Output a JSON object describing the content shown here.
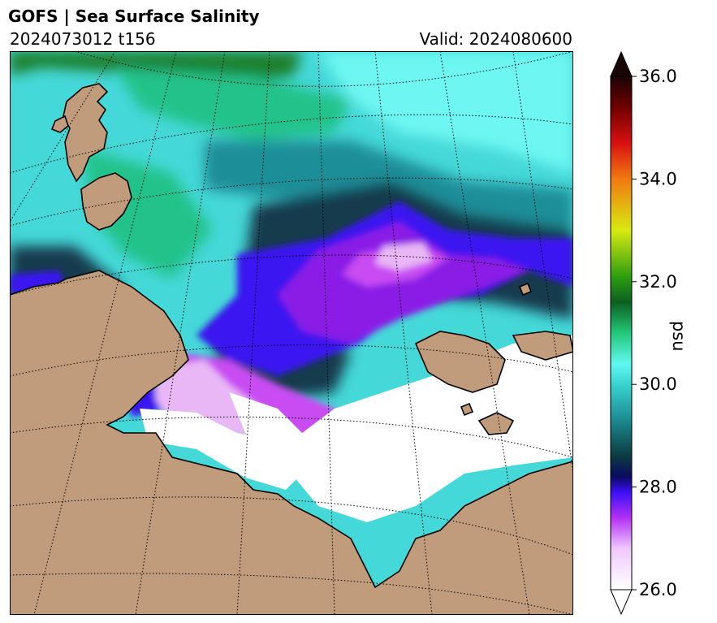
{
  "title": "GOFS  |  Sea Surface Salinity",
  "run_label": "2024073012 t156",
  "valid_label": "Valid: 2024080600",
  "map": {
    "ocean_colors": {
      "white": "#ffffff",
      "lavender": "#e9b7f5",
      "violet": "#c94cf2",
      "purple": "#8a1fe6",
      "blue": "#3a12f0",
      "navy": "#123a4e",
      "teal": "#1e8e98",
      "cyan": "#45d8d8",
      "aqua": "#6ef7f2",
      "green": "#23c28a",
      "dkgreen": "#1a7f2a",
      "land": "#c09c7d"
    },
    "gridlines": "dotted"
  },
  "colorbar": {
    "label": "psu",
    "min": 26.0,
    "max": 36.0,
    "ticks": [
      "36.0",
      "34.0",
      "32.0",
      "30.0",
      "28.0",
      "26.0"
    ],
    "extend": "both",
    "stops": [
      {
        "v": 26.0,
        "c": "#ffffff"
      },
      {
        "v": 26.8,
        "c": "#f0c8ff"
      },
      {
        "v": 27.4,
        "c": "#b230f5"
      },
      {
        "v": 27.9,
        "c": "#3a10f5"
      },
      {
        "v": 28.2,
        "c": "#0a0a60"
      },
      {
        "v": 28.6,
        "c": "#0b3a40"
      },
      {
        "v": 29.3,
        "c": "#1c8a90"
      },
      {
        "v": 30.0,
        "c": "#38d4d0"
      },
      {
        "v": 30.4,
        "c": "#60f8f0"
      },
      {
        "v": 31.0,
        "c": "#22c878"
      },
      {
        "v": 31.6,
        "c": "#0c6020"
      },
      {
        "v": 32.1,
        "c": "#2e9e10"
      },
      {
        "v": 33.0,
        "c": "#d8ea10"
      },
      {
        "v": 34.0,
        "c": "#f07a10"
      },
      {
        "v": 34.7,
        "c": "#d81010"
      },
      {
        "v": 35.4,
        "c": "#700000"
      },
      {
        "v": 36.0,
        "c": "#1a0505"
      }
    ]
  }
}
